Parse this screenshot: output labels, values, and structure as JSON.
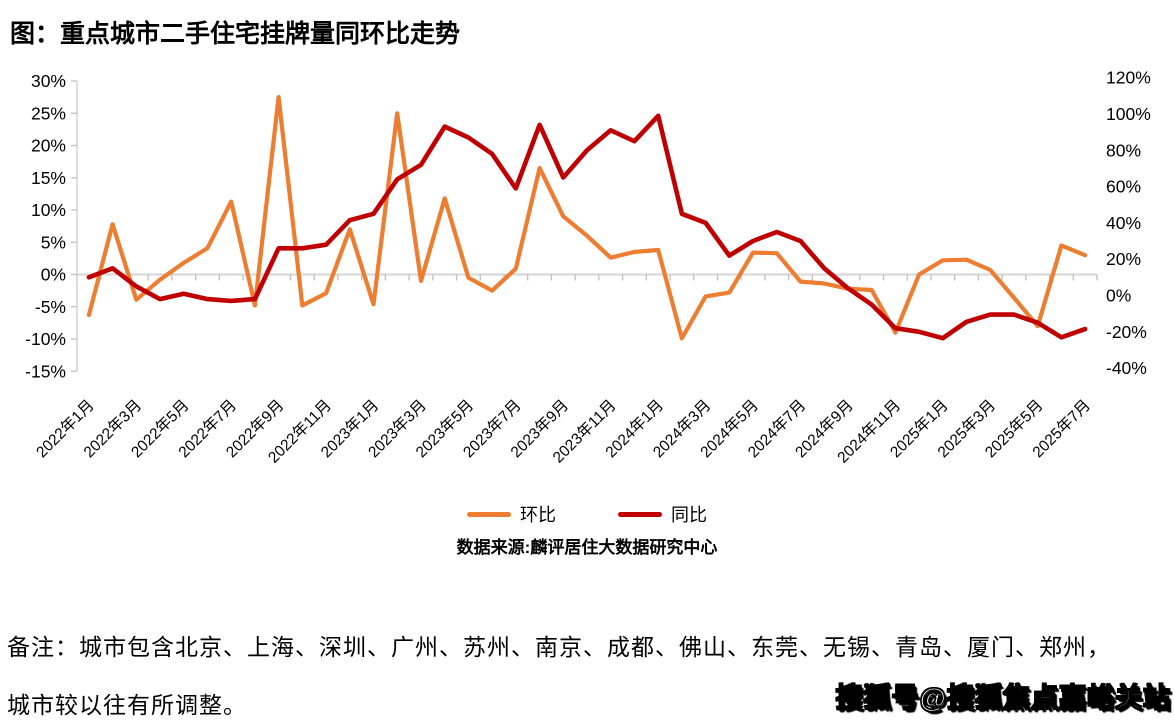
{
  "title": "图：重点城市二手住宅挂牌量同环比走势",
  "legend": {
    "mom": "环比",
    "yoy": "同比"
  },
  "source": "数据来源:麟评居住大数据研究中心",
  "note_line1": "备注：城市包含北京、上海、深圳、广州、苏州、南京、成都、佛山、东莞、无锡、青岛、厦门、郑州，",
  "note_line2": "城市较以往有所调整。",
  "watermark": "搜狐号@搜狐焦点嘉峪关站",
  "colors": {
    "mom_line": "#ED7D31",
    "yoy_line": "#C00000",
    "grid": "#D6D6D6",
    "tick": "#BFBFBF",
    "axis_text": "#000000"
  },
  "chart_data": {
    "type": "line",
    "x": [
      "2022年1月",
      "2022年2月",
      "2022年3月",
      "2022年4月",
      "2022年5月",
      "2022年6月",
      "2022年7月",
      "2022年8月",
      "2022年9月",
      "2022年10月",
      "2022年11月",
      "2022年12月",
      "2023年1月",
      "2023年2月",
      "2023年3月",
      "2023年4月",
      "2023年5月",
      "2023年6月",
      "2023年7月",
      "2023年8月",
      "2023年9月",
      "2023年10月",
      "2023年11月",
      "2023年12月",
      "2024年1月",
      "2024年2月",
      "2024年3月",
      "2024年4月",
      "2024年5月",
      "2024年6月",
      "2024年7月",
      "2024年8月",
      "2024年9月",
      "2024年10月",
      "2024年11月",
      "2024年12月",
      "2025年1月",
      "2025年2月",
      "2025年3月",
      "2025年4月",
      "2025年5月",
      "2025年6月",
      "2025年7月"
    ],
    "x_label_every": 2,
    "series": [
      {
        "name": "环比",
        "axis": "left",
        "color": "#ED7D31",
        "values": [
          -6.3,
          7.8,
          -3.9,
          -0.8,
          1.8,
          4.1,
          11.3,
          -4.8,
          27.5,
          -4.8,
          -2.9,
          7.0,
          -4.6,
          25.0,
          -1.0,
          11.8,
          -0.5,
          -2.5,
          0.9,
          16.5,
          9.0,
          6.0,
          2.6,
          3.5,
          3.8,
          -9.9,
          -3.4,
          -2.8,
          3.4,
          3.3,
          -1.1,
          -1.4,
          -2.2,
          -2.4,
          -9.0,
          0.0,
          2.2,
          2.3,
          0.7,
          -3.6,
          -8.0,
          4.5,
          3.0
        ]
      },
      {
        "name": "同比",
        "axis": "right",
        "color": "#C00000",
        "values": [
          10,
          15,
          5,
          -2,
          1,
          -2,
          -3,
          -2,
          26,
          26,
          28,
          41.5,
          45,
          64,
          72,
          93,
          87,
          78,
          59,
          94,
          65,
          80,
          91,
          85,
          99,
          45,
          40,
          22,
          30,
          35,
          30,
          15,
          4,
          -5,
          -18,
          -20,
          -23.5,
          -14.5,
          -10.5,
          -10.5,
          -15,
          -23,
          -18.5
        ]
      }
    ],
    "left_axis": {
      "ticks": [
        30,
        25,
        20,
        15,
        10,
        5,
        0,
        -5,
        -10,
        -15
      ],
      "suffix": "%",
      "min": -15,
      "max": 30
    },
    "right_axis": {
      "ticks": [
        120,
        100,
        80,
        60,
        40,
        20,
        0,
        -20,
        -40
      ],
      "suffix": "%",
      "min": -40,
      "max": 120
    },
    "grid": "zero-line-only",
    "legend_position": "bottom-center"
  }
}
